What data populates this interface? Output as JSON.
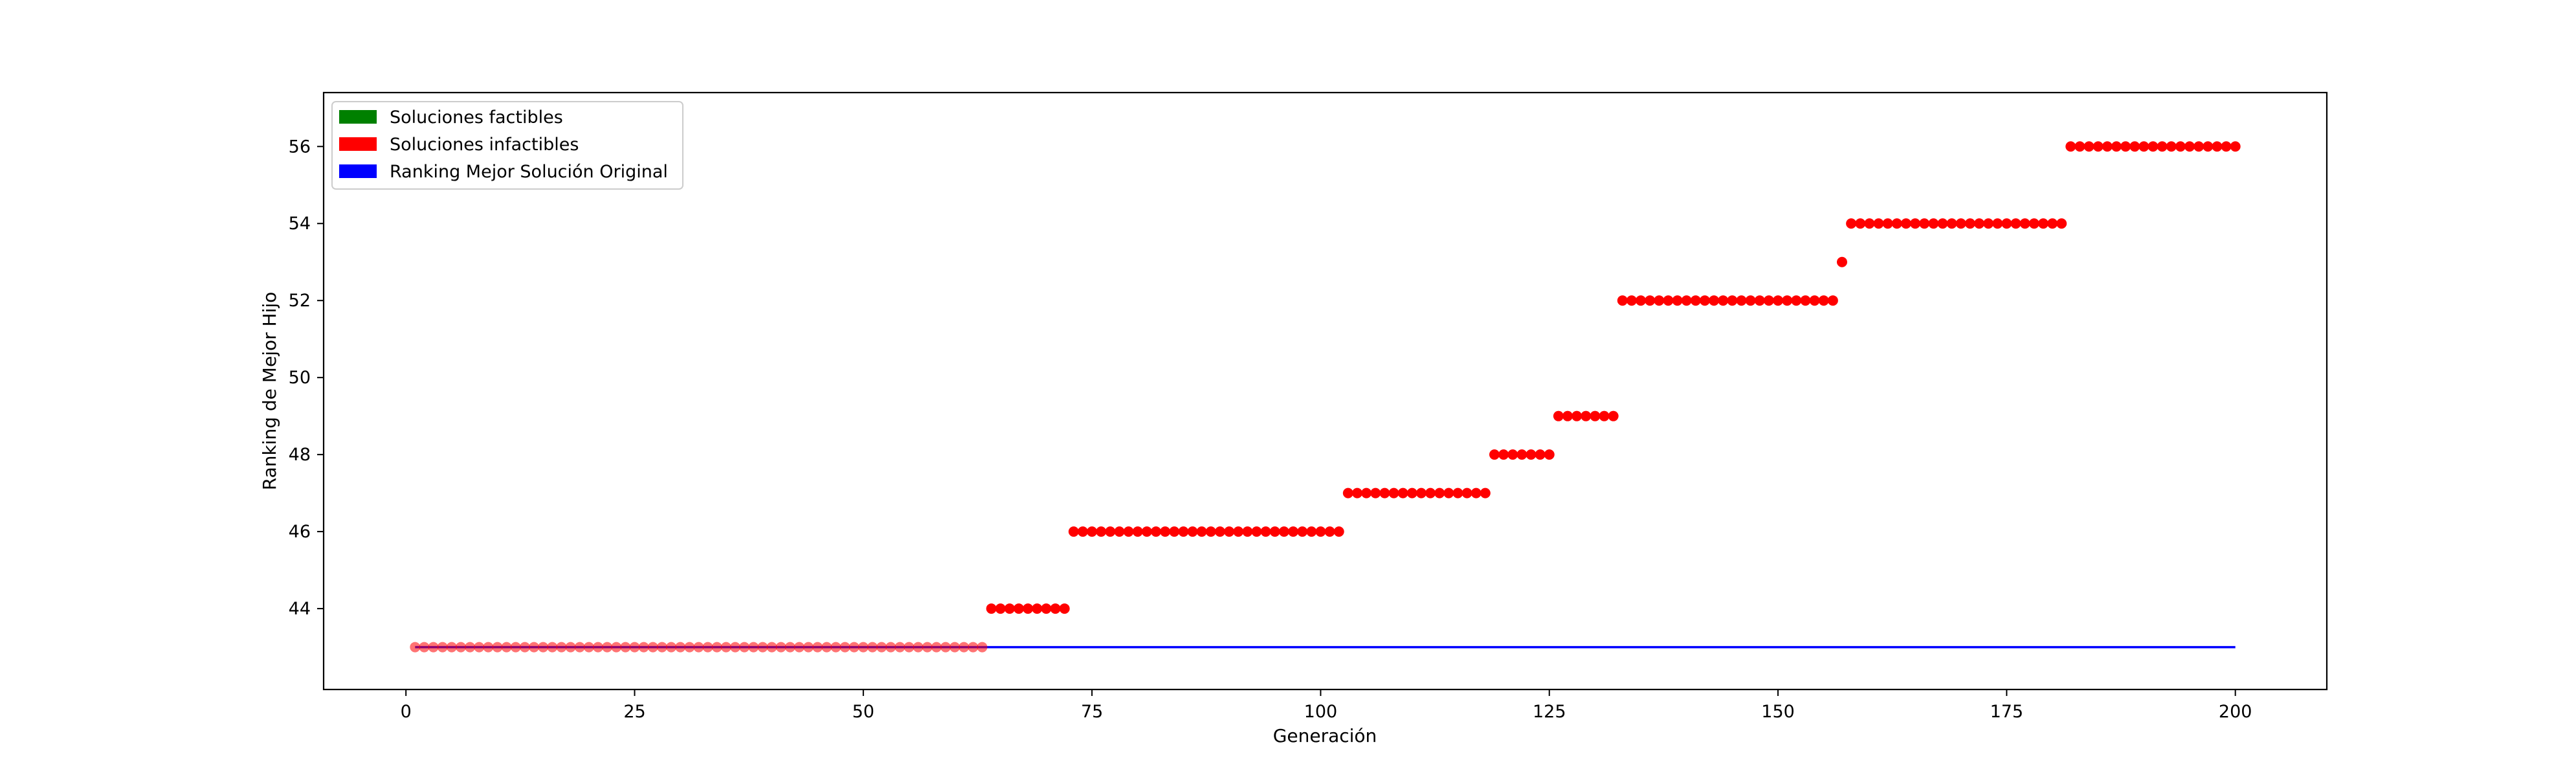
{
  "chart_data": {
    "type": "scatter",
    "title": "",
    "xlabel": "Generación",
    "ylabel": "Ranking de Mejor Hijo",
    "xlim": [
      -9,
      210
    ],
    "ylim": [
      41.9,
      57.4
    ],
    "xticks": [
      0,
      25,
      50,
      75,
      100,
      125,
      150,
      175,
      200
    ],
    "yticks": [
      44,
      46,
      48,
      50,
      52,
      54,
      56
    ],
    "grid": false,
    "legend": {
      "placement": "top-left",
      "entries": [
        {
          "label": "Soluciones factibles",
          "color": "#008000"
        },
        {
          "label": "Soluciones infactibles",
          "color": "#ff0000"
        },
        {
          "label": "Ranking Mejor Solución Original",
          "color": "#0000ff"
        }
      ]
    },
    "series": [
      {
        "name": "Soluciones infactibles",
        "color": "#ff0000",
        "segments": [
          {
            "x_from": 1,
            "x_to": 63,
            "y": 43
          },
          {
            "x_from": 64,
            "x_to": 72,
            "y": 44
          },
          {
            "x_from": 73,
            "x_to": 102,
            "y": 46
          },
          {
            "x_from": 103,
            "x_to": 118,
            "y": 47
          },
          {
            "x_from": 119,
            "x_to": 125,
            "y": 48
          },
          {
            "x_from": 126,
            "x_to": 132,
            "y": 49
          },
          {
            "x_from": 133,
            "x_to": 156,
            "y": 52
          },
          {
            "x_from": 157,
            "x_to": 157,
            "y": 53
          },
          {
            "x_from": 158,
            "x_to": 181,
            "y": 54
          },
          {
            "x_from": 182,
            "x_to": 200,
            "y": 56
          }
        ]
      },
      {
        "name": "Ranking Mejor Solución Original",
        "type": "line",
        "color": "#0000ff",
        "x": [
          1,
          200
        ],
        "y": [
          43,
          43
        ]
      }
    ]
  }
}
